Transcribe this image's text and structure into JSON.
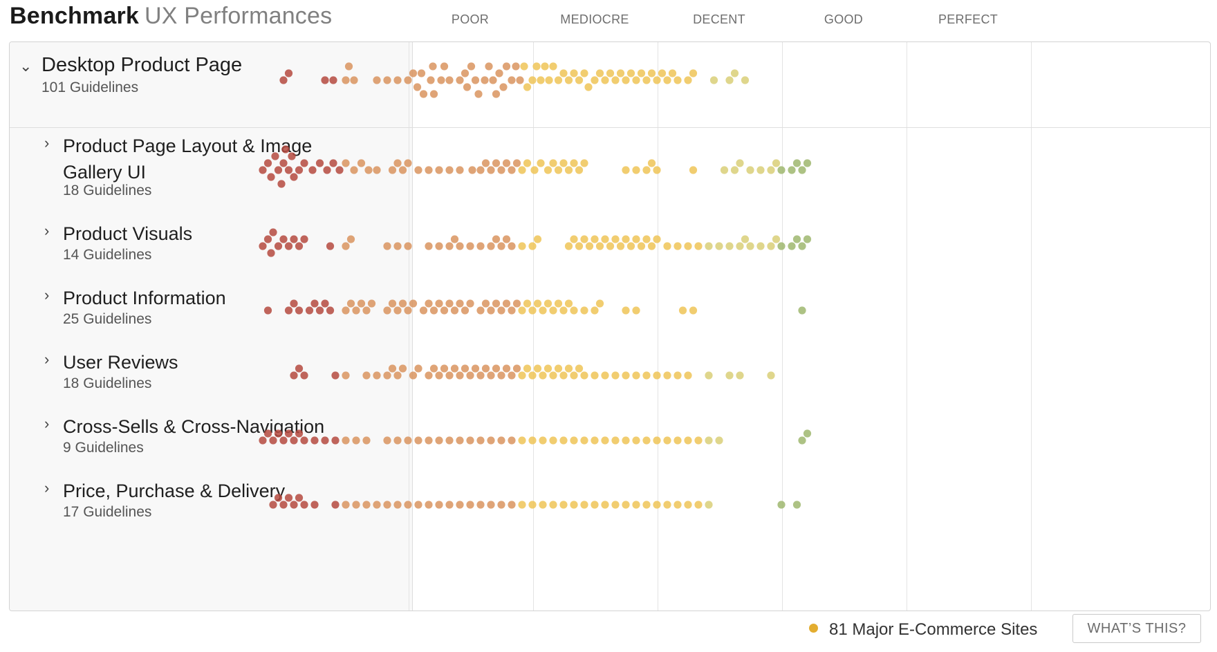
{
  "header": {
    "title_bold": "Benchmark",
    "title_light": "UX Performances",
    "scale_labels": [
      "POOR",
      "MEDIOCRE",
      "DECENT",
      "GOOD",
      "PERFECT"
    ]
  },
  "chart_data": {
    "type": "scatter",
    "title": "Benchmark UX Performances",
    "x_categories": [
      "POOR",
      "MEDIOCRE",
      "DECENT",
      "GOOD",
      "PERFECT"
    ],
    "colors": {
      "poor": "#b54a40",
      "mediocre": "#d9945f",
      "decent": "#efc457",
      "good": "#d9cf78",
      "perfect": "#9fb76e"
    },
    "legend": "81 Major E-Commerce Sites",
    "rows": [
      {
        "name": "Desktop Product Page",
        "subtitle": "101 Guidelines",
        "expanded": true,
        "points": [
          -3.6,
          -3.55,
          -3.2,
          -3.12,
          -3.0,
          -2.97,
          -2.92,
          -2.7,
          -2.6,
          -2.5,
          -2.4,
          -2.35,
          -2.31,
          -2.27,
          -2.25,
          -2.18,
          -2.16,
          -2.15,
          -2.08,
          -2.05,
          -2.0,
          -1.9,
          -1.85,
          -1.83,
          -1.79,
          -1.75,
          -1.72,
          -1.66,
          -1.62,
          -1.58,
          -1.55,
          -1.52,
          -1.48,
          -1.45,
          -1.4,
          -1.36,
          -1.32,
          -1.28,
          -1.25,
          -1.2,
          -1.16,
          -1.12,
          -1.08,
          -1.04,
          -1.0,
          -0.95,
          -0.9,
          -0.85,
          -0.8,
          -0.75,
          -0.7,
          -0.66,
          -0.6,
          -0.55,
          -0.5,
          -0.45,
          -0.4,
          -0.35,
          -0.3,
          -0.25,
          -0.2,
          -0.15,
          -0.1,
          -0.05,
          0.0,
          0.05,
          0.1,
          0.15,
          0.2,
          0.3,
          0.35,
          0.55,
          0.7,
          0.75,
          0.85
        ]
      },
      {
        "name": "Product Page Layout & Image Gallery UI",
        "subtitle": "18 Guidelines",
        "points": [
          -3.8,
          -3.75,
          -3.72,
          -3.68,
          -3.65,
          -3.62,
          -3.6,
          -3.58,
          -3.55,
          -3.52,
          -3.5,
          -3.45,
          -3.4,
          -3.32,
          -3.25,
          -3.18,
          -3.12,
          -3.06,
          -3.0,
          -2.92,
          -2.85,
          -2.78,
          -2.7,
          -2.55,
          -2.5,
          -2.45,
          -2.4,
          -2.3,
          -2.2,
          -2.1,
          -2.0,
          -1.9,
          -1.78,
          -1.7,
          -1.65,
          -1.6,
          -1.55,
          -1.5,
          -1.45,
          -1.4,
          -1.35,
          -1.3,
          -1.25,
          -1.18,
          -1.12,
          -1.05,
          -1.0,
          -0.95,
          -0.9,
          -0.85,
          -0.8,
          -0.75,
          -0.7,
          -0.3,
          -0.2,
          -0.1,
          -0.05,
          0.0,
          0.35,
          0.65,
          0.75,
          0.8,
          0.9,
          1.0,
          1.1,
          1.15,
          1.2,
          1.3,
          1.35,
          1.4,
          1.45
        ]
      },
      {
        "name": "Product Visuals",
        "subtitle": "14 Guidelines",
        "points": [
          -3.8,
          -3.75,
          -3.72,
          -3.7,
          -3.65,
          -3.6,
          -3.55,
          -3.5,
          -3.45,
          -3.4,
          -3.15,
          -3.0,
          -2.95,
          -2.6,
          -2.5,
          -2.4,
          -2.2,
          -2.1,
          -2.0,
          -1.95,
          -1.9,
          -1.8,
          -1.7,
          -1.6,
          -1.55,
          -1.5,
          -1.45,
          -1.4,
          -1.3,
          -1.2,
          -1.15,
          -0.85,
          -0.8,
          -0.75,
          -0.7,
          -0.65,
          -0.6,
          -0.55,
          -0.5,
          -0.45,
          -0.4,
          -0.35,
          -0.3,
          -0.25,
          -0.2,
          -0.15,
          -0.1,
          -0.05,
          0.0,
          0.1,
          0.2,
          0.3,
          0.4,
          0.5,
          0.6,
          0.7,
          0.8,
          0.85,
          0.9,
          1.0,
          1.1,
          1.15,
          1.2,
          1.3,
          1.35,
          1.4,
          1.45
        ]
      },
      {
        "name": "Product Information",
        "subtitle": "25 Guidelines",
        "points": [
          -3.75,
          -3.55,
          -3.5,
          -3.45,
          -3.35,
          -3.3,
          -3.25,
          -3.2,
          -3.15,
          -3.0,
          -2.95,
          -2.9,
          -2.85,
          -2.8,
          -2.75,
          -2.6,
          -2.55,
          -2.5,
          -2.45,
          -2.4,
          -2.35,
          -2.25,
          -2.2,
          -2.15,
          -2.1,
          -2.05,
          -2.0,
          -1.95,
          -1.9,
          -1.85,
          -1.8,
          -1.7,
          -1.65,
          -1.6,
          -1.55,
          -1.5,
          -1.45,
          -1.4,
          -1.35,
          -1.3,
          -1.25,
          -1.2,
          -1.15,
          -1.1,
          -1.05,
          -1.0,
          -0.95,
          -0.9,
          -0.85,
          -0.8,
          -0.7,
          -0.6,
          -0.55,
          -0.3,
          -0.2,
          0.25,
          0.35,
          1.4
        ]
      },
      {
        "name": "User Reviews",
        "subtitle": "18 Guidelines",
        "points": [
          -3.5,
          -3.45,
          -3.4,
          -3.1,
          -3.0,
          -2.8,
          -2.7,
          -2.6,
          -2.55,
          -2.5,
          -2.45,
          -2.35,
          -2.3,
          -2.2,
          -2.15,
          -2.1,
          -2.05,
          -2.0,
          -1.95,
          -1.9,
          -1.85,
          -1.8,
          -1.75,
          -1.7,
          -1.65,
          -1.6,
          -1.55,
          -1.5,
          -1.45,
          -1.4,
          -1.35,
          -1.3,
          -1.25,
          -1.2,
          -1.15,
          -1.1,
          -1.05,
          -1.0,
          -0.95,
          -0.9,
          -0.85,
          -0.8,
          -0.75,
          -0.7,
          -0.6,
          -0.5,
          -0.4,
          -0.3,
          -0.2,
          -0.1,
          0.0,
          0.1,
          0.2,
          0.3,
          0.5,
          0.7,
          0.8,
          1.1
        ]
      },
      {
        "name": "Cross-Sells & Cross-Navigation",
        "subtitle": "9 Guidelines",
        "points": [
          -3.8,
          -3.75,
          -3.7,
          -3.65,
          -3.6,
          -3.55,
          -3.5,
          -3.45,
          -3.4,
          -3.3,
          -3.2,
          -3.1,
          -3.0,
          -2.9,
          -2.8,
          -2.6,
          -2.5,
          -2.4,
          -2.3,
          -2.2,
          -2.1,
          -2.0,
          -1.9,
          -1.8,
          -1.7,
          -1.6,
          -1.5,
          -1.4,
          -1.3,
          -1.2,
          -1.1,
          -1.0,
          -0.9,
          -0.8,
          -0.7,
          -0.6,
          -0.5,
          -0.4,
          -0.3,
          -0.2,
          -0.1,
          0.0,
          0.1,
          0.2,
          0.3,
          0.4,
          0.5,
          0.6,
          1.4,
          1.45
        ]
      },
      {
        "name": "Price, Purchase & Delivery",
        "subtitle": "17 Guidelines",
        "points": [
          -3.7,
          -3.65,
          -3.6,
          -3.55,
          -3.5,
          -3.45,
          -3.4,
          -3.3,
          -3.1,
          -3.0,
          -2.9,
          -2.8,
          -2.7,
          -2.6,
          -2.5,
          -2.4,
          -2.3,
          -2.2,
          -2.1,
          -2.0,
          -1.9,
          -1.8,
          -1.7,
          -1.6,
          -1.5,
          -1.4,
          -1.3,
          -1.2,
          -1.1,
          -1.0,
          -0.9,
          -0.8,
          -0.7,
          -0.6,
          -0.5,
          -0.4,
          -0.3,
          -0.2,
          -0.1,
          0.0,
          0.1,
          0.2,
          0.3,
          0.4,
          0.5,
          1.2,
          1.35
        ]
      }
    ]
  },
  "legend": {
    "label": "81 Major E-Commerce Sites"
  },
  "whats_this": "WHAT’S THIS?"
}
